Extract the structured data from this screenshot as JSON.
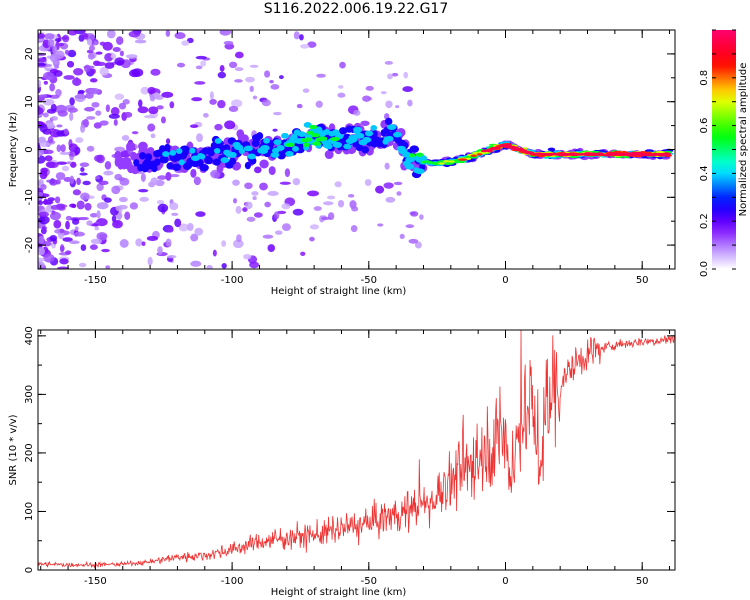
{
  "title": "S116.2022.006.19.22.G17",
  "chart_data": [
    {
      "type": "heatmap",
      "xlabel": "Height of straight line (km)",
      "ylabel": "Frequency (Hz)",
      "xlim": [
        -171,
        62
      ],
      "ylim": [
        -25,
        25
      ],
      "xticks": [
        -150,
        -100,
        -50,
        0,
        50
      ],
      "yticks": [
        -20,
        -10,
        0,
        10,
        20
      ],
      "xtick_labels": [
        "-150",
        "-100",
        "-50",
        "0",
        "50"
      ],
      "ytick_labels": [
        "-20",
        "-10",
        "0",
        "10",
        "20"
      ],
      "ridge": [
        {
          "x": -140,
          "y": -3,
          "amp": 0.12
        },
        {
          "x": -130,
          "y": -2,
          "amp": 0.25
        },
        {
          "x": -120,
          "y": -2,
          "amp": 0.3
        },
        {
          "x": -110,
          "y": -1,
          "amp": 0.3
        },
        {
          "x": -100,
          "y": 0,
          "amp": 0.32
        },
        {
          "x": -90,
          "y": 0,
          "amp": 0.3
        },
        {
          "x": -80,
          "y": 1,
          "amp": 0.35
        },
        {
          "x": -70,
          "y": 3,
          "amp": 0.45
        },
        {
          "x": -60,
          "y": 2,
          "amp": 0.35
        },
        {
          "x": -50,
          "y": 2,
          "amp": 0.3
        },
        {
          "x": -40,
          "y": 3,
          "amp": 0.3
        },
        {
          "x": -35,
          "y": -2,
          "amp": 0.35
        },
        {
          "x": -25,
          "y": -3,
          "amp": 0.5
        },
        {
          "x": -15,
          "y": -2,
          "amp": 0.6
        },
        {
          "x": -5,
          "y": 0,
          "amp": 0.75
        },
        {
          "x": 0,
          "y": 1,
          "amp": 0.85
        },
        {
          "x": 5,
          "y": 0,
          "amp": 0.9
        },
        {
          "x": 10,
          "y": -1,
          "amp": 0.8
        },
        {
          "x": 20,
          "y": -1,
          "amp": 0.82
        },
        {
          "x": 30,
          "y": -1,
          "amp": 0.84
        },
        {
          "x": 40,
          "y": -1,
          "amp": 0.9
        },
        {
          "x": 50,
          "y": -1,
          "amp": 0.93
        },
        {
          "x": 60,
          "y": -1,
          "amp": 0.95
        }
      ],
      "colorbar": {
        "label": "Normalized spectral amplitude",
        "range": [
          0,
          1
        ],
        "ticks": [
          0.0,
          0.2,
          0.4,
          0.6,
          0.8
        ],
        "tick_labels": [
          "0.0",
          "0.2",
          "0.4",
          "0.6",
          "0.8"
        ],
        "colors": [
          "#ffffff",
          "#8b00ff",
          "#0000ff",
          "#00ffff",
          "#00ff00",
          "#ffff00",
          "#ff0000",
          "#ff0066"
        ]
      }
    },
    {
      "type": "line",
      "xlabel": "Height of straight line (km)",
      "ylabel": "SNR (10 * v/v)",
      "xlim": [
        -171,
        62
      ],
      "ylim": [
        0,
        410
      ],
      "xticks": [
        -150,
        -100,
        -50,
        0,
        50
      ],
      "yticks": [
        0,
        100,
        200,
        300,
        400
      ],
      "xtick_labels": [
        "-150",
        "-100",
        "-50",
        "0",
        "50"
      ],
      "ytick_labels": [
        "0",
        "100",
        "200",
        "300",
        "400"
      ],
      "color": "#ee3333",
      "series": [
        {
          "x": [
            -171,
            -160,
            -150,
            -140,
            -130,
            -120,
            -110,
            -100,
            -90,
            -80,
            -70,
            -60,
            -50,
            -40,
            -30,
            -25,
            -20,
            -15,
            -10,
            -5,
            0,
            2,
            5,
            8,
            10,
            13,
            15,
            20,
            25,
            30,
            40,
            50,
            62
          ],
          "y": [
            10,
            9,
            9,
            10,
            14,
            22,
            25,
            35,
            48,
            55,
            60,
            70,
            80,
            95,
            110,
            130,
            150,
            170,
            200,
            215,
            230,
            140,
            250,
            265,
            285,
            160,
            300,
            320,
            350,
            370,
            385,
            390,
            395
          ]
        }
      ]
    }
  ]
}
